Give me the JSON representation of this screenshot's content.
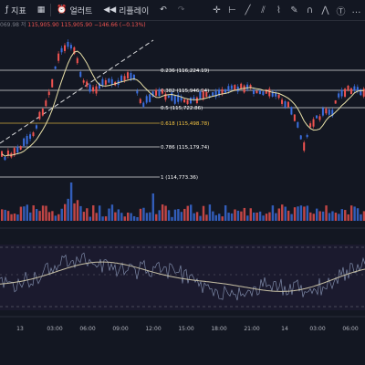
{
  "toolbar": {
    "indicators_label": "지표",
    "alerts_label": "얼러트",
    "replay_label": "리플레이"
  },
  "ohlc": {
    "left_fragment": "069.98",
    "prefix": "저",
    "low": "115,905.90",
    "close": "115,905.90",
    "change": "−146.66 (−0.13%)"
  },
  "fib_levels": [
    {
      "label": "0.236 (116,224.19)",
      "color": "#ffffff"
    },
    {
      "label": "0.382 (115,946.94)",
      "color": "#ffffff"
    },
    {
      "label": "0.5 (115,722.86)",
      "color": "#ffffff"
    },
    {
      "label": "0.618 (115,498.78)",
      "color": "#f5c542"
    },
    {
      "label": "0.786 (115,179.74)",
      "color": "#ffffff"
    },
    {
      "label": "1 (114,773.36)",
      "color": "#ffffff"
    }
  ],
  "time_axis": [
    "13",
    "03:00",
    "06:00",
    "09:00",
    "12:00",
    "15:00",
    "18:00",
    "21:00",
    "14",
    "03:00",
    "06:00"
  ],
  "colors": {
    "up": "#3b6fe0",
    "down": "#ef5350",
    "ma": "#e8e0a8",
    "osc_main": "#c9c2a6",
    "osc_signal": "#7e8aa8"
  }
}
